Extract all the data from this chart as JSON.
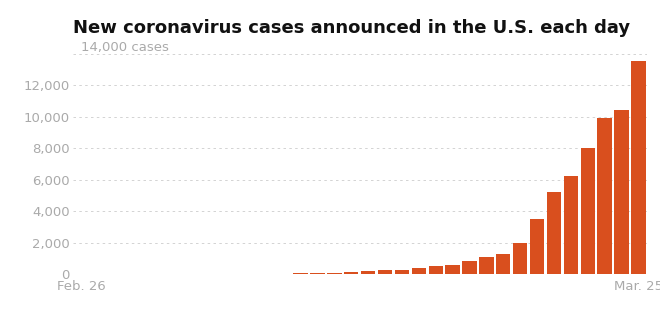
{
  "title": "New coronavirus cases announced in the U.S. each day",
  "cases_label": "14,000 cases",
  "bar_color": "#d94f1e",
  "background_color": "#ffffff",
  "x_tick_labels": [
    "Feb. 26",
    "Mar. 25"
  ],
  "yticks": [
    0,
    2000,
    4000,
    6000,
    8000,
    10000,
    12000
  ],
  "ytick_labels": [
    "0",
    "2,000",
    "4,000",
    "6,000",
    "8,000",
    "10,000",
    "12,000"
  ],
  "ylim": [
    0,
    14600
  ],
  "grid_color": "#cccccc",
  "values": [
    2,
    3,
    2,
    5,
    4,
    6,
    7,
    8,
    12,
    15,
    19,
    22,
    30,
    45,
    60,
    80,
    120,
    200,
    250,
    280,
    400,
    500,
    600,
    800,
    1100,
    1300,
    2000,
    3500,
    5200,
    6200,
    8000,
    9900,
    10400,
    13500
  ],
  "title_fontsize": 13,
  "tick_fontsize": 9.5,
  "label_fontsize": 9.5,
  "tick_color": "#aaaaaa",
  "title_color": "#111111"
}
